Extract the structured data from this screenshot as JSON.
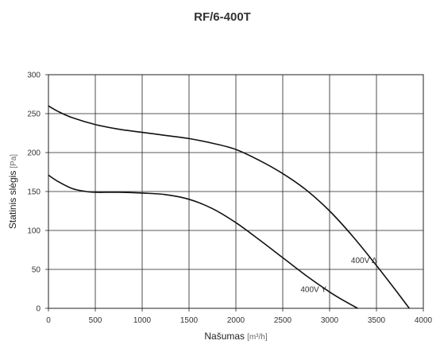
{
  "chart_data": {
    "type": "line",
    "title": "RF/6-400T",
    "xlabel": "Našumas",
    "xlabel_unit": "[m³/h]",
    "ylabel": "Statinis slėgis",
    "ylabel_unit": "[Pa]",
    "xlim": [
      0,
      4000
    ],
    "ylim": [
      0,
      300
    ],
    "x_ticks": [
      "0",
      "500",
      "1000",
      "1500",
      "2000",
      "2500",
      "3000",
      "3500",
      "4000"
    ],
    "y_ticks": [
      "0",
      "50",
      "100",
      "150",
      "200",
      "250",
      "300"
    ],
    "grid": true,
    "legend": "none",
    "series": [
      {
        "name": "400V Δ",
        "x": [
          0,
          100,
          250,
          500,
          750,
          1000,
          1250,
          1500,
          1750,
          2000,
          2250,
          2500,
          2750,
          3000,
          3250,
          3500,
          3700,
          3850
        ],
        "y": [
          260,
          253,
          245,
          236,
          230,
          226,
          222,
          218,
          212,
          204,
          190,
          173,
          152,
          125,
          92,
          55,
          24,
          0
        ]
      },
      {
        "name": "400V Y",
        "x": [
          0,
          100,
          250,
          400,
          500,
          750,
          1000,
          1250,
          1500,
          1750,
          2000,
          2250,
          2500,
          2750,
          3000,
          3150,
          3300
        ],
        "y": [
          171,
          163,
          154,
          150,
          149,
          149,
          148,
          146,
          140,
          128,
          110,
          88,
          65,
          42,
          21,
          10,
          0
        ]
      }
    ]
  }
}
